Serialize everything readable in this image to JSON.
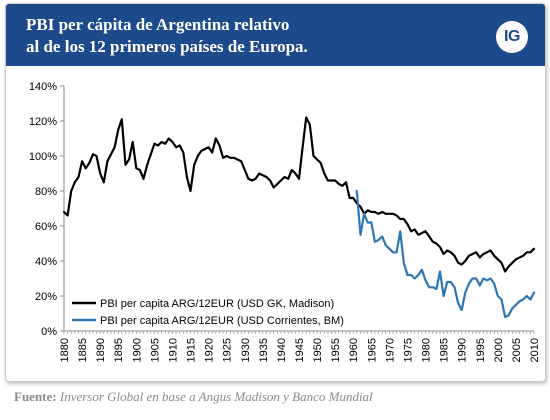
{
  "header": {
    "title": "PBI per cápita de Argentina relativo\nal de los 12 primeros países de Europa.",
    "logo_text": "IG",
    "background_color": "#1d4a8a"
  },
  "footer": {
    "source_label": "Fuente:",
    "source_text": "Inversor Global en base a Angus Madison y Banco Mundial"
  },
  "chart_data": {
    "type": "line",
    "title": "",
    "xlabel": "",
    "ylabel": "",
    "xlim": [
      1880,
      2010
    ],
    "ylim": [
      0,
      140
    ],
    "y_ticks": [
      0,
      20,
      40,
      60,
      80,
      100,
      120,
      140
    ],
    "y_tick_labels": [
      "0%",
      "20%",
      "40%",
      "60%",
      "80%",
      "100%",
      "120%",
      "140%"
    ],
    "x_ticks": [
      1880,
      1885,
      1890,
      1895,
      1900,
      1905,
      1910,
      1915,
      1920,
      1925,
      1930,
      1935,
      1940,
      1945,
      1950,
      1955,
      1960,
      1965,
      1970,
      1975,
      1980,
      1985,
      1990,
      1995,
      2000,
      2005,
      2010
    ],
    "grid": false,
    "legend_position": "bottom-left",
    "series": [
      {
        "name": "PBI per capita ARG/12EUR (USD GK, Madison)",
        "color": "#000000",
        "x": [
          1880,
          1881,
          1882,
          1883,
          1884,
          1885,
          1886,
          1887,
          1888,
          1889,
          1890,
          1891,
          1892,
          1893,
          1894,
          1895,
          1896,
          1897,
          1898,
          1899,
          1900,
          1901,
          1902,
          1903,
          1904,
          1905,
          1906,
          1907,
          1908,
          1909,
          1910,
          1911,
          1912,
          1913,
          1914,
          1915,
          1916,
          1917,
          1918,
          1919,
          1920,
          1921,
          1922,
          1923,
          1924,
          1925,
          1926,
          1927,
          1928,
          1929,
          1930,
          1931,
          1932,
          1933,
          1934,
          1935,
          1936,
          1937,
          1938,
          1939,
          1940,
          1941,
          1942,
          1943,
          1944,
          1945,
          1946,
          1947,
          1948,
          1949,
          1950,
          1951,
          1952,
          1953,
          1954,
          1955,
          1956,
          1957,
          1958,
          1959,
          1960,
          1961,
          1962,
          1963,
          1964,
          1965,
          1966,
          1967,
          1968,
          1969,
          1970,
          1971,
          1972,
          1973,
          1974,
          1975,
          1976,
          1977,
          1978,
          1979,
          1980,
          1981,
          1982,
          1983,
          1984,
          1985,
          1986,
          1987,
          1988,
          1989,
          1990,
          1991,
          1992,
          1993,
          1994,
          1995,
          1996,
          1997,
          1998,
          1999,
          2000,
          2001,
          2002,
          2003,
          2004,
          2005,
          2006,
          2007,
          2008,
          2009,
          2010
        ],
        "values": [
          68,
          66,
          80,
          85,
          88,
          97,
          93,
          96,
          101,
          100,
          90,
          85,
          97,
          101,
          105,
          115,
          121,
          95,
          98,
          108,
          93,
          92,
          87,
          95,
          101,
          107,
          106,
          108,
          107,
          110,
          108,
          105,
          106,
          102,
          88,
          80,
          95,
          100,
          103,
          104,
          105,
          102,
          110,
          106,
          99,
          100,
          99,
          99,
          98,
          97,
          92,
          87,
          86,
          87,
          90,
          89,
          88,
          86,
          82,
          84,
          86,
          88,
          87,
          92,
          90,
          87,
          105,
          122,
          118,
          100,
          98,
          96,
          90,
          86,
          86,
          86,
          84,
          83,
          85,
          76,
          76,
          73,
          71,
          67,
          69,
          68,
          68,
          67,
          68,
          67,
          67,
          67,
          66,
          64,
          64,
          61,
          57,
          58,
          55,
          56,
          57,
          54,
          51,
          50,
          48,
          44,
          46,
          45,
          43,
          39,
          38,
          40,
          43,
          44,
          45,
          42,
          44,
          45,
          46,
          43,
          41,
          39,
          34,
          37,
          39,
          41,
          42,
          43,
          45,
          45,
          47
        ]
      },
      {
        "name": "PBI per capita ARG/12EUR (USD Corrientes, BM)",
        "color": "#2e75b6",
        "x": [
          1961,
          1962,
          1963,
          1964,
          1965,
          1966,
          1967,
          1968,
          1969,
          1970,
          1971,
          1972,
          1973,
          1974,
          1975,
          1976,
          1977,
          1978,
          1979,
          1980,
          1981,
          1982,
          1983,
          1984,
          1985,
          1986,
          1987,
          1988,
          1989,
          1990,
          1991,
          1992,
          1993,
          1994,
          1995,
          1996,
          1997,
          1998,
          1999,
          2000,
          2001,
          2002,
          2003,
          2004,
          2005,
          2006,
          2007,
          2008,
          2009,
          2010
        ],
        "values": [
          80,
          55,
          67,
          62,
          62,
          51,
          52,
          54,
          49,
          47,
          45,
          45,
          57,
          39,
          32,
          32,
          30,
          32,
          35,
          29,
          25,
          25,
          24,
          34,
          20,
          28,
          28,
          25,
          16,
          12,
          22,
          27,
          30,
          30,
          26,
          30,
          29,
          30,
          27,
          20,
          18,
          8,
          9,
          13,
          15,
          17,
          18,
          20,
          18,
          22
        ]
      }
    ]
  }
}
